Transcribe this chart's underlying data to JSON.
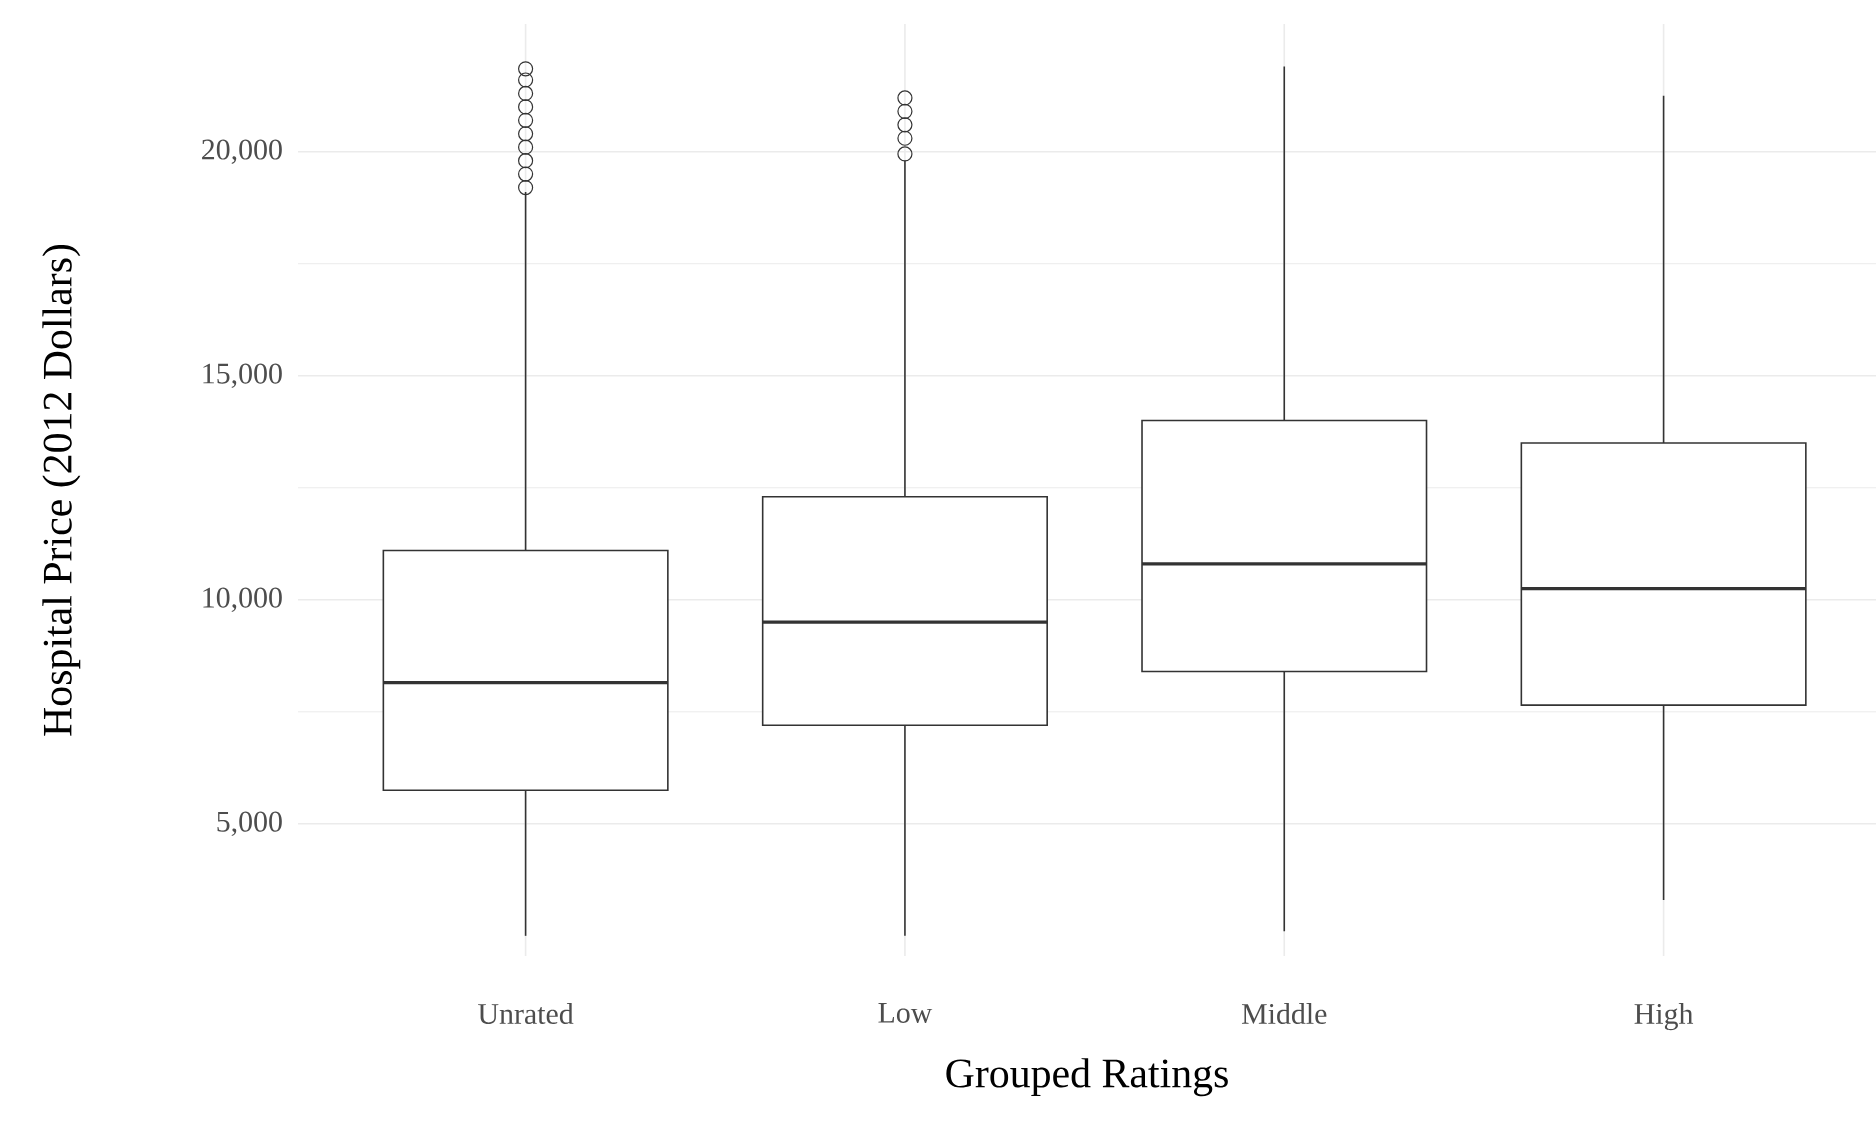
{
  "chart_data": {
    "type": "box",
    "xlabel": "Grouped Ratings",
    "ylabel": "Hospital Price (2012 Dollars)",
    "categories": [
      "Unrated",
      "Low",
      "Middle",
      "High"
    ],
    "boxes": [
      {
        "low": 2500,
        "q1": 5750,
        "median": 8150,
        "q3": 11100,
        "high": 19100,
        "outliers": [
          19200,
          19500,
          19800,
          20100,
          20400,
          20700,
          21000,
          21300,
          21600,
          21850
        ]
      },
      {
        "low": 2500,
        "q1": 7200,
        "median": 9500,
        "q3": 12300,
        "high": 19800,
        "outliers": [
          19950,
          20300,
          20600,
          20900,
          21200
        ]
      },
      {
        "low": 2600,
        "q1": 8400,
        "median": 10800,
        "q3": 14000,
        "high": 21900
      },
      {
        "low": 3300,
        "q1": 7650,
        "median": 10250,
        "q3": 13500,
        "high": 21250
      }
    ],
    "color": "#333333",
    "ylim": [
      2050,
      22850
    ],
    "yticks": [
      {
        "value": 5000,
        "label": "5,000"
      },
      {
        "value": 10000,
        "label": "10,000"
      },
      {
        "value": 15000,
        "label": "15,000"
      },
      {
        "value": 20000,
        "label": "20,000"
      }
    ],
    "grid": true
  }
}
